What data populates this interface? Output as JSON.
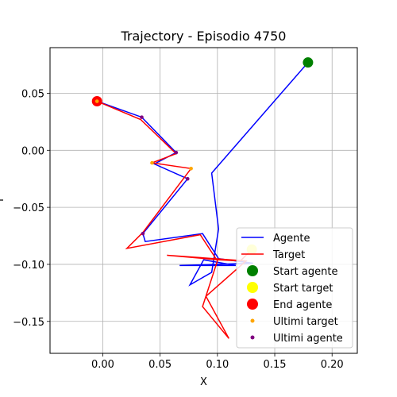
{
  "chart_data": {
    "type": "line",
    "title": "Trajectory - Episodio 4750",
    "xlabel": "X",
    "ylabel": "Y",
    "xlim": [
      -0.046,
      0.222
    ],
    "ylim": [
      -0.178,
      0.09
    ],
    "xticks": [
      0.0,
      0.05,
      0.1,
      0.15,
      0.2
    ],
    "xtick_labels": [
      "0.00",
      "0.05",
      "0.10",
      "0.15",
      "0.20"
    ],
    "yticks": [
      -0.15,
      -0.1,
      -0.05,
      0.0,
      0.05
    ],
    "ytick_labels": [
      "−0.15",
      "−0.10",
      "−0.05",
      "0.00",
      "0.05"
    ],
    "grid": true,
    "legend_position": "lower-right",
    "colors": {
      "agente": "#0000ff",
      "target": "#ff0000",
      "start_agente": "#008000",
      "start_target": "#ffff00",
      "end_agente": "#ff0000",
      "ultimi_target": "#ffa500",
      "ultimi_agente": "#800080"
    },
    "series": [
      {
        "name": "Agente",
        "points": [
          [
            0.179,
            0.077
          ],
          [
            0.095,
            -0.02
          ],
          [
            0.101,
            -0.069
          ],
          [
            0.095,
            -0.107
          ],
          [
            0.076,
            -0.118
          ],
          [
            0.088,
            -0.096
          ],
          [
            0.116,
            -0.101
          ],
          [
            0.067,
            -0.101
          ],
          [
            0.131,
            -0.099
          ],
          [
            0.101,
            -0.095
          ],
          [
            0.087,
            -0.073
          ],
          [
            0.037,
            -0.08
          ],
          [
            0.035,
            -0.073
          ],
          [
            0.074,
            -0.025
          ],
          [
            0.045,
            -0.012
          ],
          [
            0.064,
            -0.002
          ],
          [
            0.034,
            0.029
          ],
          [
            -0.005,
            0.043
          ]
        ]
      },
      {
        "name": "Target",
        "points": [
          [
            0.13,
            -0.087
          ],
          [
            0.12,
            -0.097
          ],
          [
            0.101,
            -0.096
          ],
          [
            0.056,
            -0.092
          ],
          [
            0.125,
            -0.097
          ],
          [
            0.09,
            -0.128
          ],
          [
            0.11,
            -0.165
          ],
          [
            0.087,
            -0.137
          ],
          [
            0.1,
            -0.097
          ],
          [
            0.085,
            -0.074
          ],
          [
            0.021,
            -0.086
          ],
          [
            0.035,
            -0.072
          ],
          [
            0.077,
            -0.016
          ],
          [
            0.043,
            -0.011
          ],
          [
            0.064,
            -0.003
          ],
          [
            0.033,
            0.027
          ],
          [
            -0.005,
            0.043
          ]
        ]
      }
    ],
    "markers": {
      "start_agente": {
        "label": "Start agente",
        "point": [
          0.179,
          0.077
        ]
      },
      "start_target": {
        "label": "Start target",
        "point": [
          0.13,
          -0.087
        ]
      },
      "end_agente": {
        "label": "End agente",
        "point": [
          -0.005,
          0.043
        ]
      },
      "ultimi_target": {
        "label": "Ultimi target",
        "points": [
          [
            0.077,
            -0.016
          ],
          [
            0.043,
            -0.011
          ],
          [
            -0.005,
            0.043
          ]
        ]
      },
      "ultimi_agente": {
        "label": "Ultimi agente",
        "points": [
          [
            0.035,
            -0.073
          ],
          [
            0.074,
            -0.025
          ],
          [
            0.064,
            -0.002
          ],
          [
            0.034,
            0.029
          ]
        ]
      }
    },
    "legend": [
      "Agente",
      "Target",
      "Start agente",
      "Start target",
      "End agente",
      "Ultimi target",
      "Ultimi agente"
    ]
  }
}
